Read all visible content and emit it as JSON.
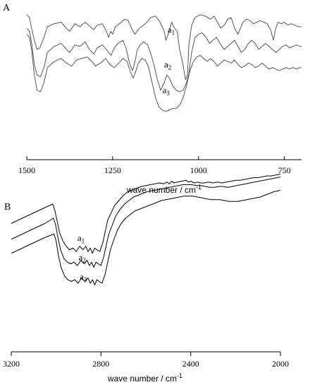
{
  "chart_data": [
    {
      "type": "line",
      "panel_label": "A",
      "xlabel_main": "wave number / cm",
      "xlabel_sup": "-1",
      "x_reversed": true,
      "xlim": [
        1500,
        700
      ],
      "xticks": [
        1500,
        1250,
        1000,
        750
      ],
      "xtick_labels": [
        "1500",
        "1250",
        "1000",
        "750"
      ],
      "color": "#555555",
      "series": [
        {
          "label_main": "a",
          "label_sub": "1",
          "label_x": 1090,
          "label_y": 0.83,
          "x": [
            1500,
            1492,
            1485,
            1478,
            1470,
            1462,
            1450,
            1440,
            1420,
            1400,
            1385,
            1375,
            1360,
            1345,
            1330,
            1320,
            1305,
            1295,
            1280,
            1268,
            1262,
            1255,
            1250,
            1242,
            1230,
            1215,
            1205,
            1195,
            1185,
            1172,
            1160,
            1150,
            1140,
            1125,
            1112,
            1100,
            1095,
            1088,
            1078,
            1070,
            1062,
            1055,
            1045,
            1038,
            1032,
            1028,
            1020,
            1010,
            995,
            980,
            965,
            955,
            945,
            935,
            925,
            915,
            905,
            895,
            885,
            878,
            870,
            860,
            850,
            840,
            830,
            820,
            810,
            800,
            790,
            782,
            775,
            768,
            760,
            750,
            740,
            730,
            720,
            710,
            700
          ],
          "y": [
            0.95,
            0.93,
            0.85,
            0.78,
            0.72,
            0.73,
            0.8,
            0.87,
            0.89,
            0.9,
            0.86,
            0.84,
            0.89,
            0.87,
            0.9,
            0.88,
            0.85,
            0.88,
            0.89,
            0.84,
            0.8,
            0.84,
            0.82,
            0.87,
            0.89,
            0.92,
            0.91,
            0.86,
            0.82,
            0.86,
            0.88,
            0.9,
            0.93,
            0.94,
            0.9,
            0.84,
            0.78,
            0.82,
            0.9,
            0.86,
            0.84,
            0.72,
            0.62,
            0.52,
            0.55,
            0.75,
            0.88,
            0.93,
            0.95,
            0.94,
            0.92,
            0.94,
            0.9,
            0.86,
            0.88,
            0.92,
            0.93,
            0.86,
            0.82,
            0.86,
            0.9,
            0.92,
            0.91,
            0.89,
            0.9,
            0.91,
            0.9,
            0.89,
            0.85,
            0.78,
            0.86,
            0.9,
            0.89,
            0.9,
            0.88,
            0.89,
            0.88,
            0.87,
            0.87
          ]
        },
        {
          "label_main": "a",
          "label_sub": "2",
          "label_x": 1100,
          "label_y": 0.6,
          "x": [
            1500,
            1492,
            1485,
            1478,
            1470,
            1460,
            1450,
            1440,
            1420,
            1400,
            1385,
            1375,
            1360,
            1345,
            1330,
            1318,
            1305,
            1295,
            1280,
            1265,
            1255,
            1245,
            1235,
            1220,
            1210,
            1200,
            1192,
            1185,
            1178,
            1170,
            1160,
            1148,
            1140,
            1130,
            1120,
            1110,
            1100,
            1092,
            1085,
            1075,
            1065,
            1055,
            1045,
            1035,
            1028,
            1020,
            1010,
            1000,
            990,
            978,
            968,
            958,
            948,
            935,
            925,
            915,
            905,
            895,
            885,
            875,
            865,
            855,
            845,
            835,
            825,
            815,
            805,
            795,
            785,
            775,
            765,
            755,
            745,
            735,
            725,
            715,
            705,
            700
          ],
          "y": [
            0.86,
            0.84,
            0.75,
            0.62,
            0.55,
            0.54,
            0.6,
            0.7,
            0.74,
            0.76,
            0.72,
            0.7,
            0.75,
            0.74,
            0.77,
            0.72,
            0.69,
            0.73,
            0.75,
            0.71,
            0.68,
            0.73,
            0.76,
            0.78,
            0.72,
            0.62,
            0.58,
            0.64,
            0.72,
            0.75,
            0.77,
            0.75,
            0.7,
            0.62,
            0.52,
            0.45,
            0.5,
            0.55,
            0.53,
            0.48,
            0.45,
            0.44,
            0.45,
            0.5,
            0.56,
            0.7,
            0.8,
            0.82,
            0.83,
            0.8,
            0.76,
            0.78,
            0.8,
            0.75,
            0.72,
            0.74,
            0.76,
            0.78,
            0.74,
            0.7,
            0.72,
            0.76,
            0.78,
            0.76,
            0.72,
            0.74,
            0.76,
            0.74,
            0.72,
            0.7,
            0.72,
            0.74,
            0.75,
            0.73,
            0.74,
            0.75,
            0.74,
            0.74
          ]
        },
        {
          "label_main": "a",
          "label_sub": "3",
          "label_x": 1105,
          "label_y": 0.43,
          "x": [
            1500,
            1492,
            1485,
            1478,
            1470,
            1460,
            1450,
            1440,
            1420,
            1400,
            1385,
            1370,
            1355,
            1340,
            1325,
            1310,
            1300,
            1285,
            1270,
            1258,
            1245,
            1232,
            1220,
            1208,
            1198,
            1190,
            1182,
            1175,
            1165,
            1155,
            1145,
            1135,
            1125,
            1115,
            1105,
            1095,
            1085,
            1075,
            1065,
            1055,
            1045,
            1035,
            1025,
            1015,
            1005,
            995,
            985,
            975,
            965,
            955,
            945,
            935,
            925,
            915,
            905,
            895,
            885,
            875,
            865,
            855,
            845,
            835,
            825,
            815,
            805,
            795,
            785,
            775,
            765,
            755,
            745,
            735,
            725,
            715,
            705,
            700
          ],
          "y": [
            0.82,
            0.8,
            0.7,
            0.55,
            0.45,
            0.44,
            0.5,
            0.6,
            0.64,
            0.66,
            0.63,
            0.61,
            0.65,
            0.66,
            0.67,
            0.64,
            0.61,
            0.63,
            0.66,
            0.62,
            0.6,
            0.63,
            0.66,
            0.64,
            0.57,
            0.53,
            0.58,
            0.63,
            0.66,
            0.65,
            0.6,
            0.5,
            0.4,
            0.34,
            0.32,
            0.31,
            0.32,
            0.33,
            0.33,
            0.35,
            0.4,
            0.48,
            0.58,
            0.64,
            0.67,
            0.68,
            0.66,
            0.64,
            0.66,
            0.64,
            0.61,
            0.63,
            0.65,
            0.64,
            0.63,
            0.65,
            0.62,
            0.6,
            0.61,
            0.63,
            0.62,
            0.6,
            0.61,
            0.63,
            0.61,
            0.59,
            0.6,
            0.59,
            0.58,
            0.59,
            0.6,
            0.59,
            0.6,
            0.59,
            0.6,
            0.6
          ]
        }
      ]
    },
    {
      "type": "line",
      "panel_label": "B",
      "xlabel_main": "wave number / cm",
      "xlabel_sup": "-1",
      "x_reversed": true,
      "xlim": [
        3200,
        2000
      ],
      "xticks": [
        3200,
        2800,
        2400,
        2000
      ],
      "xtick_labels": [
        "3200",
        "2800",
        "2400",
        "2000"
      ],
      "color": "#000000",
      "series": [
        {
          "label_main": "a",
          "label_sub": "1",
          "label_x": 2905,
          "label_y": 0.63,
          "x": [
            3200,
            3150,
            3100,
            3050,
            3015,
            3005,
            2995,
            2985,
            2970,
            2955,
            2940,
            2925,
            2910,
            2895,
            2880,
            2868,
            2858,
            2848,
            2838,
            2828,
            2818,
            2805,
            2792,
            2780,
            2770,
            2755,
            2740,
            2720,
            2700,
            2680,
            2660,
            2640,
            2620,
            2600,
            2580,
            2560,
            2540,
            2520,
            2505,
            2495,
            2485,
            2475,
            2460,
            2440,
            2420,
            2410,
            2400,
            2385,
            2370,
            2355,
            2340,
            2320,
            2300,
            2280,
            2260,
            2240,
            2220,
            2200,
            2180,
            2160,
            2140,
            2120,
            2100,
            2080,
            2060,
            2040,
            2020,
            2000
          ],
          "y": [
            0.73,
            0.76,
            0.79,
            0.82,
            0.84,
            0.8,
            0.74,
            0.68,
            0.63,
            0.6,
            0.58,
            0.59,
            0.57,
            0.6,
            0.58,
            0.6,
            0.57,
            0.59,
            0.56,
            0.59,
            0.58,
            0.57,
            0.62,
            0.69,
            0.75,
            0.79,
            0.83,
            0.86,
            0.89,
            0.91,
            0.92,
            0.93,
            0.94,
            0.945,
            0.95,
            0.955,
            0.96,
            0.955,
            0.965,
            0.955,
            0.97,
            0.96,
            0.965,
            0.97,
            0.975,
            0.965,
            0.97,
            0.96,
            0.965,
            0.96,
            0.96,
            0.965,
            0.96,
            0.965,
            0.96,
            0.965,
            0.97,
            0.975,
            0.975,
            0.98,
            0.985,
            0.99,
            0.99,
            0.995,
            1.0,
            1.0,
            1.005,
            1.01
          ]
        },
        {
          "label_main": "a",
          "label_sub": "2",
          "label_x": 2900,
          "label_y": 0.52,
          "x": [
            3200,
            3150,
            3100,
            3050,
            3012,
            3002,
            2992,
            2980,
            2965,
            2950,
            2935,
            2920,
            2905,
            2890,
            2875,
            2862,
            2852,
            2842,
            2832,
            2822,
            2812,
            2800,
            2788,
            2776,
            2765,
            2750,
            2735,
            2715,
            2695,
            2675,
            2655,
            2635,
            2615,
            2595,
            2575,
            2555,
            2535,
            2515,
            2495,
            2475,
            2455,
            2435,
            2415,
            2395,
            2375,
            2355,
            2335,
            2315,
            2295,
            2275,
            2255,
            2235,
            2215,
            2195,
            2175,
            2155,
            2135,
            2115,
            2095,
            2075,
            2055,
            2035,
            2015,
            2000
          ],
          "y": [
            0.64,
            0.67,
            0.7,
            0.73,
            0.76,
            0.72,
            0.65,
            0.58,
            0.53,
            0.51,
            0.5,
            0.51,
            0.49,
            0.52,
            0.5,
            0.52,
            0.49,
            0.51,
            0.48,
            0.51,
            0.5,
            0.49,
            0.54,
            0.61,
            0.67,
            0.72,
            0.77,
            0.81,
            0.84,
            0.86,
            0.88,
            0.89,
            0.9,
            0.91,
            0.915,
            0.92,
            0.925,
            0.93,
            0.935,
            0.94,
            0.945,
            0.95,
            0.95,
            0.95,
            0.945,
            0.945,
            0.94,
            0.935,
            0.935,
            0.94,
            0.94,
            0.935,
            0.94,
            0.945,
            0.95,
            0.955,
            0.96,
            0.965,
            0.97,
            0.975,
            0.98,
            0.985,
            0.99,
            0.995
          ]
        },
        {
          "label_main": "a",
          "label_sub": "3",
          "label_x": 2895,
          "label_y": 0.41,
          "x": [
            3200,
            3150,
            3100,
            3050,
            3010,
            3000,
            2990,
            2978,
            2962,
            2948,
            2932,
            2917,
            2902,
            2887,
            2872,
            2858,
            2848,
            2838,
            2828,
            2818,
            2808,
            2795,
            2782,
            2770,
            2758,
            2742,
            2727,
            2710,
            2690,
            2670,
            2650,
            2630,
            2610,
            2590,
            2570,
            2550,
            2530,
            2510,
            2490,
            2470,
            2450,
            2430,
            2410,
            2390,
            2370,
            2350,
            2330,
            2310,
            2290,
            2270,
            2250,
            2230,
            2210,
            2190,
            2170,
            2150,
            2130,
            2110,
            2090,
            2070,
            2050,
            2030,
            2010,
            2000
          ],
          "y": [
            0.56,
            0.59,
            0.62,
            0.65,
            0.67,
            0.63,
            0.55,
            0.48,
            0.43,
            0.41,
            0.4,
            0.41,
            0.39,
            0.42,
            0.4,
            0.42,
            0.39,
            0.41,
            0.38,
            0.41,
            0.4,
            0.39,
            0.44,
            0.51,
            0.58,
            0.64,
            0.69,
            0.73,
            0.76,
            0.78,
            0.8,
            0.81,
            0.82,
            0.83,
            0.84,
            0.85,
            0.86,
            0.865,
            0.87,
            0.875,
            0.88,
            0.885,
            0.885,
            0.885,
            0.88,
            0.875,
            0.87,
            0.865,
            0.865,
            0.865,
            0.86,
            0.855,
            0.855,
            0.855,
            0.86,
            0.865,
            0.87,
            0.875,
            0.88,
            0.89,
            0.9,
            0.91,
            0.915,
            0.92
          ]
        }
      ]
    }
  ]
}
